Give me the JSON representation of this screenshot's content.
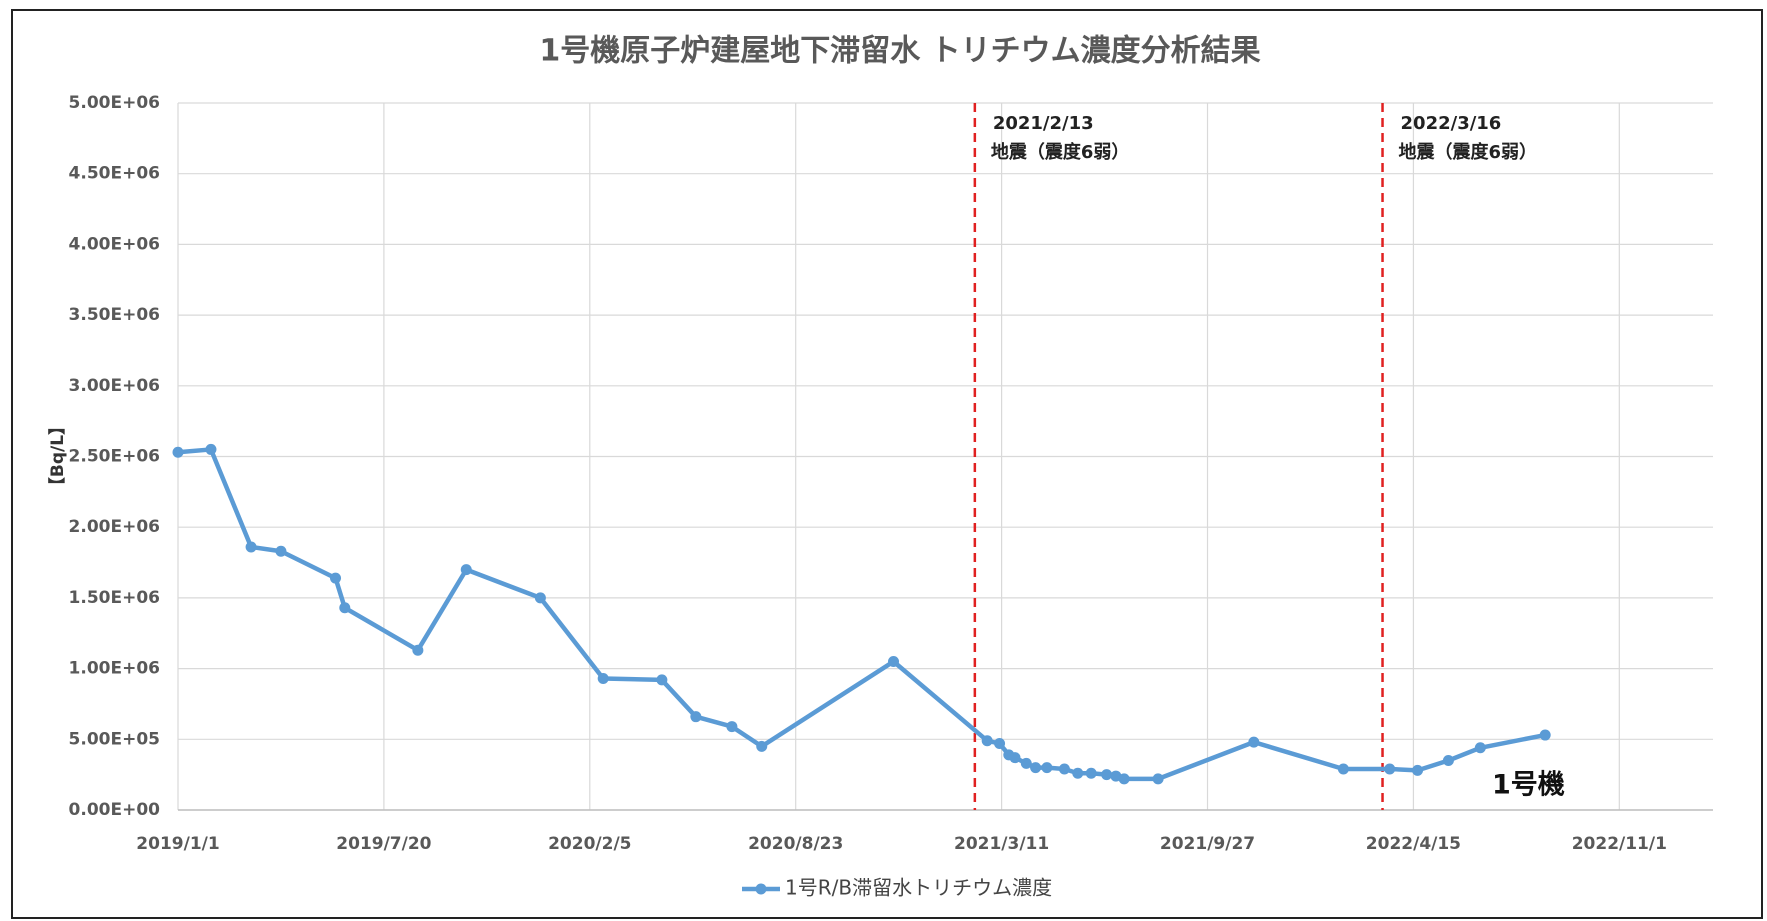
{
  "chart_data": {
    "type": "line",
    "title": "1号機原子炉建屋地下滞留水 トリチウム濃度分析結果",
    "y_label": "【Bq/L】",
    "x": [
      "2019/1/1",
      "2019/2/2",
      "2019/3/13",
      "2019/4/11",
      "2019/6/3",
      "2019/6/12",
      "2019/8/22",
      "2019/10/8",
      "2019/12/19",
      "2020/2/18",
      "2020/4/15",
      "2020/5/18",
      "2020/6/22",
      "2020/7/21",
      "2020/11/26",
      "2021/2/25",
      "2021/3/9",
      "2021/3/18",
      "2021/3/24",
      "2021/4/4",
      "2021/4/13",
      "2021/4/24",
      "2021/5/11",
      "2021/5/24",
      "2021/6/6",
      "2021/6/21",
      "2021/6/30",
      "2021/7/8",
      "2021/8/10",
      "2021/11/11",
      "2022/2/6",
      "2022/3/23",
      "2022/4/19",
      "2022/5/19",
      "2022/6/19",
      "2022/8/21"
    ],
    "series": [
      {
        "name": "1号R/B滞留水トリチウム濃度",
        "color": "#5b9bd5",
        "values": [
          2530000,
          2550000,
          1860000,
          1830000,
          1640000,
          1430000,
          1130000,
          1700000,
          1500000,
          930000,
          920000,
          660000,
          590000,
          450000,
          1050000,
          490000,
          470000,
          390000,
          370000,
          330000,
          300000,
          300000,
          290000,
          260000,
          260000,
          250000,
          240000,
          220000,
          220000,
          480000,
          290000,
          290000,
          280000,
          350000,
          440000,
          530000
        ]
      }
    ],
    "series_label": "1号機",
    "xlim": [
      "2019/1/1",
      "2023/1/31"
    ],
    "xticks": [
      "2019/1/1",
      "2019/7/20",
      "2020/2/5",
      "2020/8/23",
      "2021/3/11",
      "2021/9/27",
      "2022/4/15",
      "2022/11/1"
    ],
    "ylim": [
      0,
      5000000
    ],
    "yticks": [
      {
        "value": 0,
        "label": "0.00E+00"
      },
      {
        "value": 500000,
        "label": "5.00E+05"
      },
      {
        "value": 1000000,
        "label": "1.00E+06"
      },
      {
        "value": 1500000,
        "label": "1.50E+06"
      },
      {
        "value": 2000000,
        "label": "2.00E+06"
      },
      {
        "value": 2500000,
        "label": "2.50E+06"
      },
      {
        "value": 3000000,
        "label": "3.00E+06"
      },
      {
        "value": 3500000,
        "label": "3.50E+06"
      },
      {
        "value": 4000000,
        "label": "4.00E+06"
      },
      {
        "value": 4500000,
        "label": "4.50E+06"
      },
      {
        "value": 5000000,
        "label": "5.00E+06"
      }
    ],
    "grid": true,
    "annotations": [
      {
        "date": "2021/2/13",
        "text": "地震（震度6弱）",
        "color": "#e02020"
      },
      {
        "date": "2022/3/16",
        "text": "地震（震度6弱）",
        "color": "#e02020"
      }
    ]
  }
}
